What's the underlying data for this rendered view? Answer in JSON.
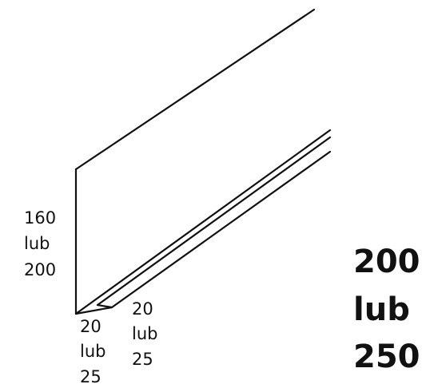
{
  "labels": {
    "height": [
      "160",
      "lub",
      "200"
    ],
    "flange_front": [
      "20",
      "lub",
      "25"
    ],
    "flange_side": [
      "20",
      "lub",
      "25"
    ],
    "length": [
      "200",
      "lub",
      "250"
    ]
  }
}
